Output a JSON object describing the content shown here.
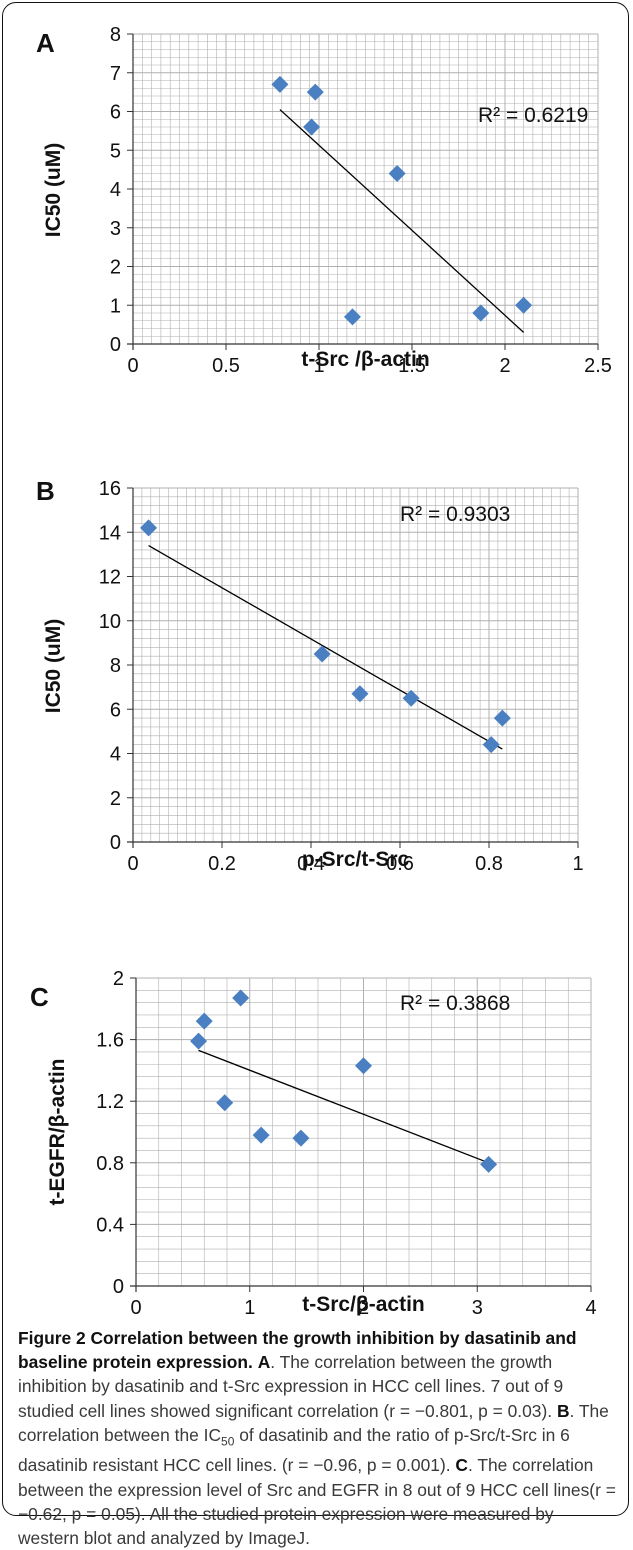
{
  "chart_data": [
    {
      "type": "scatter",
      "panel_label": "A",
      "xlabel": "t-Src /β-actin",
      "ylabel": "IC50 (uM)",
      "xlim": [
        0,
        2.5
      ],
      "ylim": [
        0,
        8
      ],
      "x_ticks": [
        "0",
        "0.5",
        "1",
        "1.5",
        "2",
        "2.5"
      ],
      "y_ticks": [
        "0",
        "1",
        "2",
        "3",
        "4",
        "5",
        "6",
        "7",
        "8"
      ],
      "points": [
        {
          "x": 0.79,
          "y": 6.7
        },
        {
          "x": 0.98,
          "y": 6.5
        },
        {
          "x": 0.96,
          "y": 5.6
        },
        {
          "x": 1.42,
          "y": 4.4
        },
        {
          "x": 1.18,
          "y": 0.7
        },
        {
          "x": 1.87,
          "y": 0.8
        },
        {
          "x": 2.1,
          "y": 1.0
        }
      ],
      "trendline": {
        "x": [
          0.79,
          2.1
        ],
        "y": [
          6.05,
          0.3
        ]
      },
      "r2_label": "R² = 0.6219",
      "grid": true
    },
    {
      "type": "scatter",
      "panel_label": "B",
      "xlabel": "p-Src/t-Src",
      "ylabel": "IC50 (uM)",
      "xlim": [
        0,
        1
      ],
      "ylim": [
        0,
        16
      ],
      "x_ticks": [
        "0",
        "0.2",
        "0.4",
        "0.6",
        "0.8",
        "1"
      ],
      "y_ticks": [
        "0",
        "2",
        "4",
        "6",
        "8",
        "10",
        "12",
        "14",
        "16"
      ],
      "points": [
        {
          "x": 0.035,
          "y": 14.2
        },
        {
          "x": 0.425,
          "y": 8.5
        },
        {
          "x": 0.51,
          "y": 6.7
        },
        {
          "x": 0.625,
          "y": 6.5
        },
        {
          "x": 0.805,
          "y": 4.4
        },
        {
          "x": 0.83,
          "y": 5.6
        }
      ],
      "trendline": {
        "x": [
          0.035,
          0.83
        ],
        "y": [
          13.4,
          4.2
        ]
      },
      "r2_label": "R² = 0.9303",
      "grid": true
    },
    {
      "type": "scatter",
      "panel_label": "C",
      "xlabel": "t-Src/β-actin",
      "ylabel": "t-EGFR/β-actin",
      "xlim": [
        0,
        4
      ],
      "ylim": [
        0,
        2
      ],
      "x_ticks": [
        "0",
        "1",
        "2",
        "3",
        "4"
      ],
      "y_ticks": [
        "0",
        "0.4",
        "0.8",
        "1.2",
        "1.6",
        "2"
      ],
      "points": [
        {
          "x": 0.55,
          "y": 1.59
        },
        {
          "x": 0.6,
          "y": 1.72
        },
        {
          "x": 0.92,
          "y": 1.87
        },
        {
          "x": 0.78,
          "y": 1.19
        },
        {
          "x": 1.1,
          "y": 0.98
        },
        {
          "x": 1.45,
          "y": 0.96
        },
        {
          "x": 2.0,
          "y": 1.43
        },
        {
          "x": 3.1,
          "y": 0.79
        }
      ],
      "trendline": {
        "x": [
          0.55,
          3.1
        ],
        "y": [
          1.53,
          0.8
        ]
      },
      "r2_label": "R² = 0.3868",
      "grid": true
    }
  ],
  "caption": {
    "title": "Figure 2 Correlation between the growth inhibition by dasatinib and baseline protein expression.",
    "a_label": "A",
    "a_text": ". The correlation between the growth inhibition by dasatinib and t-Src expression in HCC cell lines. 7 out of 9 studied cell lines showed significant correlation (r = −0.801, p = 0.03). ",
    "b_label": "B",
    "b_text1": ". The correlation between the IC",
    "b_sub": "50",
    "b_text2": " of dasatinib and the ratio of p-Src/t-Src in 6 dasatinib resistant HCC cell lines. (r = −0.96, p = 0.001). ",
    "c_label": "C",
    "c_text": ". The correlation between the expression level of Src and EGFR in 8 out of 9 HCC cell lines(r = −0.62, p = 0.05). All the studied protein expression were measured by western blot and analyzed by ImageJ."
  },
  "colors": {
    "marker": "#4a7fc1",
    "grid": "#b0b0b0",
    "trendline": "#000000"
  }
}
